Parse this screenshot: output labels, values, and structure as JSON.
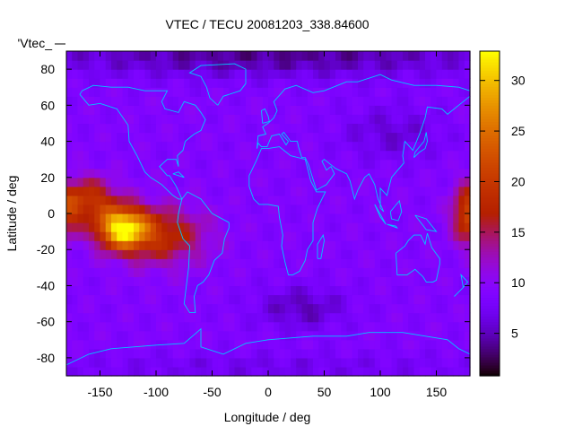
{
  "chart_data": {
    "type": "heatmap",
    "title": "VTEC / TECU 20081203_338.84600",
    "legend_key": "'Vtec_",
    "xlabel": "Longitude / deg",
    "ylabel": "Latitude / deg",
    "xlim": [
      -180,
      180
    ],
    "ylim": [
      -90,
      90
    ],
    "cbrange": [
      0.8,
      32.9
    ],
    "xticks": [
      -150,
      -100,
      -50,
      0,
      50,
      100,
      150
    ],
    "yticks": [
      -80,
      -60,
      -40,
      -20,
      0,
      20,
      40,
      60,
      80
    ],
    "cbticks": [
      5,
      10,
      15,
      20,
      25,
      30
    ],
    "cell_deg": [
      5,
      5
    ],
    "palette": "gnuplot rgbformulae 7,5,15",
    "coastline_color": "#00c8ff",
    "field_model": {
      "base": 9,
      "blobs": [
        {
          "lon": -130,
          "lat": -8,
          "amp": 22,
          "slon": 22,
          "slat": 11
        },
        {
          "lon": -95,
          "lat": -12,
          "amp": 9,
          "slon": 40,
          "slat": 16
        },
        {
          "lon": -160,
          "lat": 8,
          "amp": 10,
          "slon": 25,
          "slat": 12
        },
        {
          "lon": 180,
          "lat": 0,
          "amp": 13,
          "slon": 15,
          "slat": 16
        },
        {
          "lon": -180,
          "lat": 0,
          "amp": 8,
          "slon": 12,
          "slat": 14
        },
        {
          "lon": 0,
          "lat": 88,
          "amp": -5,
          "slon": 220,
          "slat": 12
        },
        {
          "lon": 30,
          "lat": -52,
          "amp": -4,
          "slon": 40,
          "slat": 12
        },
        {
          "lon": 110,
          "lat": 45,
          "amp": -3,
          "slon": 45,
          "slat": 15
        },
        {
          "lon": 0,
          "lat": -85,
          "amp": -2,
          "slon": 200,
          "slat": 8
        }
      ]
    },
    "coastlines": [
      [
        [
          -168,
          66
        ],
        [
          -160,
          60
        ],
        [
          -150,
          61
        ],
        [
          -135,
          58
        ],
        [
          -125,
          49
        ],
        [
          -124,
          40
        ],
        [
          -117,
          32
        ],
        [
          -110,
          23
        ],
        [
          -105,
          20
        ],
        [
          -95,
          16
        ],
        [
          -85,
          10
        ],
        [
          -80,
          8
        ],
        [
          -77,
          8
        ],
        [
          -82,
          15
        ],
        [
          -88,
          21
        ],
        [
          -90,
          21
        ],
        [
          -97,
          26
        ],
        [
          -90,
          30
        ],
        [
          -82,
          30
        ],
        [
          -80,
          26
        ],
        [
          -81,
          32
        ],
        [
          -76,
          35
        ],
        [
          -74,
          40
        ],
        [
          -70,
          42
        ],
        [
          -66,
          44
        ],
        [
          -60,
          46
        ],
        [
          -56,
          52
        ],
        [
          -60,
          56
        ],
        [
          -65,
          60
        ],
        [
          -75,
          62
        ],
        [
          -80,
          56
        ],
        [
          -92,
          58
        ],
        [
          -95,
          62
        ],
        [
          -90,
          68
        ],
        [
          -110,
          68
        ],
        [
          -125,
          70
        ],
        [
          -140,
          70
        ],
        [
          -156,
          71
        ],
        [
          -166,
          68
        ],
        [
          -168,
          66
        ]
      ],
      [
        [
          -77,
          8
        ],
        [
          -80,
          0
        ],
        [
          -81,
          -5
        ],
        [
          -76,
          -14
        ],
        [
          -70,
          -18
        ],
        [
          -71,
          -30
        ],
        [
          -73,
          -40
        ],
        [
          -75,
          -50
        ],
        [
          -70,
          -55
        ],
        [
          -65,
          -55
        ],
        [
          -66,
          -46
        ],
        [
          -63,
          -40
        ],
        [
          -58,
          -38
        ],
        [
          -53,
          -34
        ],
        [
          -48,
          -26
        ],
        [
          -41,
          -22
        ],
        [
          -39,
          -14
        ],
        [
          -35,
          -8
        ],
        [
          -35,
          -5
        ],
        [
          -50,
          0
        ],
        [
          -60,
          8
        ],
        [
          -72,
          12
        ],
        [
          -77,
          8
        ]
      ],
      [
        [
          -17,
          21
        ],
        [
          -17,
          15
        ],
        [
          -13,
          8
        ],
        [
          -8,
          5
        ],
        [
          0,
          5
        ],
        [
          9,
          4
        ],
        [
          10,
          -2
        ],
        [
          13,
          -12
        ],
        [
          12,
          -18
        ],
        [
          15,
          -27
        ],
        [
          18,
          -34
        ],
        [
          22,
          -34
        ],
        [
          28,
          -32
        ],
        [
          33,
          -26
        ],
        [
          35,
          -20
        ],
        [
          40,
          -15
        ],
        [
          40,
          -5
        ],
        [
          44,
          3
        ],
        [
          51,
          12
        ],
        [
          43,
          12
        ],
        [
          38,
          18
        ],
        [
          33,
          30
        ],
        [
          20,
          32
        ],
        [
          10,
          37
        ],
        [
          0,
          36
        ],
        [
          -6,
          36
        ],
        [
          -10,
          30
        ],
        [
          -17,
          21
        ]
      ],
      [
        [
          -10,
          36
        ],
        [
          -9,
          43
        ],
        [
          -2,
          44
        ],
        [
          -5,
          48
        ],
        [
          0,
          50
        ],
        [
          5,
          53
        ],
        [
          8,
          57
        ],
        [
          5,
          62
        ],
        [
          15,
          69
        ],
        [
          25,
          71
        ],
        [
          40,
          67
        ],
        [
          50,
          68
        ],
        [
          70,
          73
        ],
        [
          80,
          73
        ],
        [
          100,
          77
        ],
        [
          110,
          74
        ],
        [
          130,
          71
        ],
        [
          150,
          71
        ],
        [
          170,
          70
        ],
        [
          180,
          68
        ]
      ],
      [
        [
          180,
          65
        ],
        [
          170,
          60
        ],
        [
          160,
          55
        ],
        [
          155,
          58
        ],
        [
          142,
          59
        ],
        [
          140,
          53
        ],
        [
          135,
          44
        ],
        [
          129,
          35
        ],
        [
          122,
          40
        ],
        [
          120,
          32
        ],
        [
          121,
          28
        ],
        [
          110,
          20
        ],
        [
          106,
          10
        ],
        [
          100,
          14
        ],
        [
          100,
          3
        ],
        [
          103,
          1
        ],
        [
          98,
          8
        ],
        [
          95,
          16
        ],
        [
          90,
          22
        ],
        [
          86,
          20
        ],
        [
          80,
          13
        ],
        [
          77,
          8
        ],
        [
          73,
          18
        ],
        [
          70,
          22
        ],
        [
          60,
          25
        ],
        [
          56,
          27
        ],
        [
          50,
          30
        ],
        [
          48,
          29
        ],
        [
          52,
          24
        ],
        [
          56,
          26
        ],
        [
          59,
          22
        ],
        [
          52,
          16
        ],
        [
          43,
          13
        ],
        [
          36,
          27
        ],
        [
          33,
          31
        ],
        [
          30,
          31
        ],
        [
          27,
          37
        ],
        [
          26,
          40
        ],
        [
          20,
          40
        ],
        [
          14,
          45
        ],
        [
          12,
          44
        ],
        [
          18,
          40
        ],
        [
          16,
          38
        ],
        [
          10,
          44
        ],
        [
          3,
          43
        ],
        [
          -1,
          37
        ],
        [
          -6,
          37
        ],
        [
          -9,
          39
        ],
        [
          -10,
          36
        ]
      ],
      [
        [
          114,
          -22
        ],
        [
          115,
          -34
        ],
        [
          124,
          -34
        ],
        [
          131,
          -31
        ],
        [
          138,
          -35
        ],
        [
          141,
          -38
        ],
        [
          147,
          -38
        ],
        [
          150,
          -37
        ],
        [
          153,
          -28
        ],
        [
          153,
          -25
        ],
        [
          146,
          -19
        ],
        [
          142,
          -11
        ],
        [
          140,
          -17
        ],
        [
          136,
          -12
        ],
        [
          130,
          -12
        ],
        [
          125,
          -15
        ],
        [
          122,
          -18
        ],
        [
          114,
          -22
        ]
      ],
      [
        [
          -45,
          60
        ],
        [
          -52,
          64
        ],
        [
          -55,
          70
        ],
        [
          -60,
          76
        ],
        [
          -70,
          78
        ],
        [
          -60,
          82
        ],
        [
          -30,
          83
        ],
        [
          -20,
          80
        ],
        [
          -20,
          72
        ],
        [
          -25,
          68
        ],
        [
          -40,
          65
        ],
        [
          -45,
          60
        ]
      ],
      [
        [
          -180,
          -84
        ],
        [
          -160,
          -78
        ],
        [
          -140,
          -75
        ],
        [
          -100,
          -73
        ],
        [
          -75,
          -72
        ],
        [
          -60,
          -64
        ],
        [
          -60,
          -74
        ],
        [
          -40,
          -78
        ],
        [
          -20,
          -72
        ],
        [
          0,
          -70
        ],
        [
          40,
          -68
        ],
        [
          70,
          -68
        ],
        [
          90,
          -66
        ],
        [
          120,
          -66
        ],
        [
          160,
          -70
        ],
        [
          170,
          -75
        ],
        [
          180,
          -78
        ]
      ],
      [
        [
          44,
          -25
        ],
        [
          47,
          -25
        ],
        [
          50,
          -15
        ],
        [
          49,
          -12
        ],
        [
          44,
          -17
        ],
        [
          44,
          -25
        ]
      ],
      [
        [
          -5,
          50
        ],
        [
          1,
          51
        ],
        [
          0,
          54
        ],
        [
          -3,
          58
        ],
        [
          -6,
          57
        ],
        [
          -5,
          50
        ]
      ],
      [
        [
          130,
          31
        ],
        [
          135,
          34
        ],
        [
          140,
          36
        ],
        [
          142,
          40
        ],
        [
          141,
          45
        ],
        [
          139,
          40
        ],
        [
          131,
          34
        ],
        [
          130,
          31
        ]
      ],
      [
        [
          95,
          5
        ],
        [
          105,
          -6
        ],
        [
          100,
          -2
        ],
        [
          95,
          5
        ]
      ],
      [
        [
          106,
          -6
        ],
        [
          115,
          -8
        ],
        [
          114,
          -7
        ],
        [
          106,
          -6
        ]
      ],
      [
        [
          109,
          1
        ],
        [
          117,
          7
        ],
        [
          119,
          1
        ],
        [
          116,
          -4
        ],
        [
          110,
          -3
        ],
        [
          109,
          1
        ]
      ],
      [
        [
          131,
          -1
        ],
        [
          141,
          -3
        ],
        [
          150,
          -10
        ],
        [
          141,
          -9
        ],
        [
          131,
          -1
        ]
      ],
      [
        [
          166,
          -46
        ],
        [
          174,
          -41
        ],
        [
          178,
          -38
        ],
        [
          172,
          -34
        ],
        [
          174,
          -41
        ],
        [
          166,
          -46
        ]
      ],
      [
        [
          -85,
          22
        ],
        [
          -75,
          20
        ],
        [
          -80,
          23
        ],
        [
          -85,
          22
        ]
      ]
    ]
  }
}
